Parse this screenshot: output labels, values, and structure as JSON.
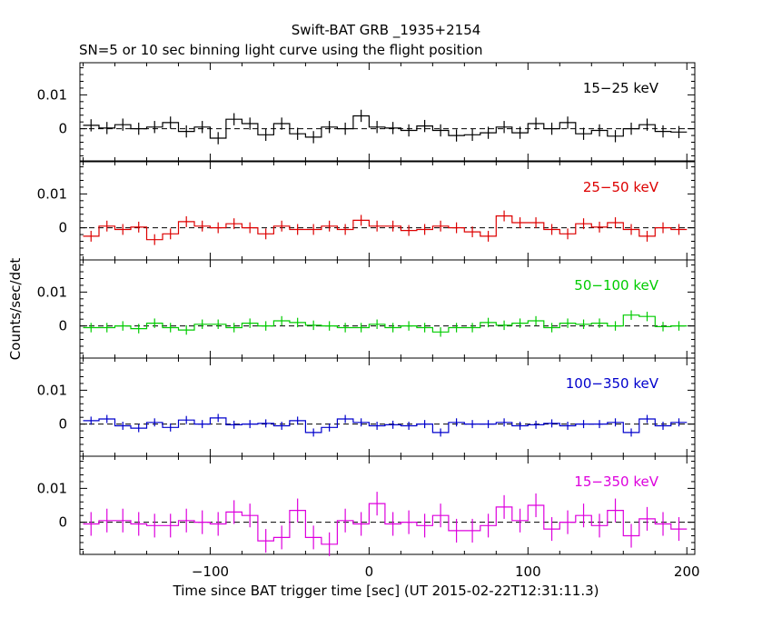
{
  "chart_data": {
    "type": "line",
    "style": "step-with-error-bars",
    "title": "Swift-BAT GRB _1935+2154",
    "subtitle": "SN=5 or 10 sec binning light curve using the flight position",
    "xlabel": "Time since BAT trigger time [sec] (UT 2015-02-22T12:31:11.3)",
    "ylabel": "Counts/sec/det",
    "xlim": [
      -182,
      205
    ],
    "ylim": [
      -0.0095,
      0.0195
    ],
    "x_ticks": [
      "−100",
      "0",
      "100",
      "200"
    ],
    "y_ticks": [
      "0",
      "0.01"
    ],
    "reference_line": "y = 0 (dashed)",
    "bin_width": 10,
    "x": [
      -175,
      -165,
      -155,
      -145,
      -135,
      -125,
      -115,
      -105,
      -95,
      -85,
      -75,
      -65,
      -55,
      -45,
      -35,
      -25,
      -15,
      -5,
      5,
      15,
      25,
      35,
      45,
      55,
      65,
      75,
      85,
      95,
      105,
      115,
      125,
      135,
      145,
      155,
      165,
      175,
      185,
      195
    ],
    "series": [
      {
        "name": "15−25 keV",
        "color": "#000000",
        "values": [
          0.001,
          0.0002,
          0.0012,
          0.0,
          0.0005,
          0.0018,
          -0.0008,
          0.0005,
          -0.0028,
          0.0028,
          0.0015,
          -0.0018,
          0.0015,
          -0.0015,
          -0.0025,
          0.0005,
          0.0,
          0.0038,
          0.0005,
          0.0002,
          -0.0005,
          0.0008,
          -0.0005,
          -0.002,
          -0.0018,
          -0.0012,
          0.0005,
          -0.0012,
          0.0015,
          0.0,
          0.0018,
          -0.0015,
          -0.0005,
          -0.0022,
          0.0,
          0.0012,
          -0.0008,
          -0.001
        ],
        "errors": [
          0.0018,
          0.0018,
          0.0018,
          0.0018,
          0.0018,
          0.0018,
          0.0018,
          0.0018,
          0.0018,
          0.0018,
          0.0018,
          0.0018,
          0.0018,
          0.0018,
          0.0018,
          0.0018,
          0.0018,
          0.0018,
          0.0018,
          0.0018,
          0.0018,
          0.0018,
          0.0018,
          0.0018,
          0.0018,
          0.0018,
          0.0018,
          0.0018,
          0.0018,
          0.0018,
          0.0018,
          0.0018,
          0.0018,
          0.0018,
          0.0018,
          0.0018,
          0.0018,
          0.0018
        ]
      },
      {
        "name": "25−50 keV",
        "color": "#dd0000",
        "values": [
          -0.0025,
          0.0005,
          -0.0005,
          0.0002,
          -0.0035,
          -0.0018,
          0.0018,
          0.0005,
          0.0,
          0.0012,
          0.0,
          -0.0018,
          0.0005,
          -0.0005,
          -0.0005,
          0.0005,
          -0.0005,
          0.0022,
          0.0005,
          0.0005,
          -0.0008,
          -0.0005,
          0.0005,
          0.0,
          -0.0012,
          -0.0025,
          0.0035,
          0.0015,
          0.0015,
          -0.0005,
          -0.0018,
          0.0012,
          0.0002,
          0.0015,
          -0.0005,
          -0.0025,
          0.0,
          -0.0005
        ],
        "errors": [
          0.0016,
          0.0016,
          0.0016,
          0.0016,
          0.0016,
          0.0016,
          0.0016,
          0.0016,
          0.0016,
          0.0016,
          0.0016,
          0.0016,
          0.0016,
          0.0016,
          0.0016,
          0.0016,
          0.0016,
          0.0016,
          0.0016,
          0.0016,
          0.0016,
          0.0016,
          0.0016,
          0.0016,
          0.0016,
          0.0016,
          0.0016,
          0.0016,
          0.0016,
          0.0016,
          0.0016,
          0.0016,
          0.0016,
          0.0016,
          0.0016,
          0.0016,
          0.0016,
          0.0016
        ]
      },
      {
        "name": "50−100 keV",
        "color": "#00cc00",
        "values": [
          -0.0005,
          -0.0005,
          0.0,
          -0.0008,
          0.0008,
          -0.0005,
          -0.0012,
          0.0005,
          0.0005,
          -0.0005,
          0.0008,
          0.0,
          0.0015,
          0.001,
          0.0002,
          0.0,
          -0.0005,
          -0.0005,
          0.0005,
          -0.0005,
          0.0,
          -0.0005,
          -0.0018,
          -0.0005,
          -0.0005,
          0.001,
          0.0002,
          0.0008,
          0.0015,
          -0.0005,
          0.0008,
          0.0005,
          0.0008,
          0.0,
          0.0032,
          0.0028,
          -0.0002,
          0.0
        ],
        "errors": [
          0.0014,
          0.0014,
          0.0014,
          0.0014,
          0.0014,
          0.0014,
          0.0014,
          0.0014,
          0.0014,
          0.0014,
          0.0014,
          0.0014,
          0.0014,
          0.0014,
          0.0014,
          0.0014,
          0.0014,
          0.0014,
          0.0014,
          0.0014,
          0.0014,
          0.0014,
          0.0014,
          0.0014,
          0.0014,
          0.0014,
          0.0014,
          0.0014,
          0.0014,
          0.0014,
          0.0014,
          0.0014,
          0.0014,
          0.0014,
          0.0014,
          0.0014,
          0.0014,
          0.0014
        ]
      },
      {
        "name": "100−350 keV",
        "color": "#0000cc",
        "values": [
          0.001,
          0.0015,
          -0.0005,
          -0.0012,
          0.0005,
          -0.001,
          0.0012,
          0.0,
          0.0018,
          -0.0002,
          0.0,
          0.0002,
          -0.0005,
          0.001,
          -0.0025,
          -0.001,
          0.0015,
          0.0005,
          -0.0005,
          -0.0002,
          -0.0005,
          0.0,
          -0.0025,
          0.0005,
          0.0,
          0.0,
          0.0005,
          -0.0005,
          -0.0002,
          0.0002,
          -0.0005,
          0.0,
          0.0,
          0.0005,
          -0.0025,
          0.0015,
          -0.0005,
          0.0005
        ],
        "errors": [
          0.0012,
          0.0012,
          0.0012,
          0.0012,
          0.0012,
          0.0012,
          0.0012,
          0.0012,
          0.0012,
          0.0012,
          0.0012,
          0.0012,
          0.0012,
          0.0012,
          0.0012,
          0.0012,
          0.0012,
          0.0012,
          0.0012,
          0.0012,
          0.0012,
          0.0012,
          0.0012,
          0.0012,
          0.0012,
          0.0012,
          0.0012,
          0.0012,
          0.0012,
          0.0012,
          0.0012,
          0.0012,
          0.0012,
          0.0012,
          0.0012,
          0.0012,
          0.0012,
          0.0012
        ]
      },
      {
        "name": "15−350 keV",
        "color": "#dd00dd",
        "values": [
          -0.0005,
          0.0005,
          0.0005,
          -0.0005,
          -0.001,
          -0.001,
          0.0005,
          0.0,
          -0.0005,
          0.003,
          0.002,
          -0.0055,
          -0.0045,
          0.0035,
          -0.0045,
          -0.0065,
          0.0005,
          -0.0005,
          0.0055,
          -0.0005,
          0.0,
          -0.001,
          0.002,
          -0.0025,
          -0.0025,
          -0.001,
          0.0045,
          0.0005,
          0.005,
          -0.002,
          0.0,
          0.002,
          -0.001,
          0.0035,
          -0.004,
          0.001,
          -0.0005,
          -0.002
        ],
        "errors": [
          0.0035,
          0.0035,
          0.0035,
          0.0035,
          0.0035,
          0.0035,
          0.0035,
          0.0035,
          0.0035,
          0.0035,
          0.0035,
          0.0035,
          0.0035,
          0.0035,
          0.0035,
          0.0035,
          0.0035,
          0.0035,
          0.0035,
          0.0035,
          0.0035,
          0.0035,
          0.0035,
          0.0035,
          0.0035,
          0.0035,
          0.0035,
          0.0035,
          0.0035,
          0.0035,
          0.0035,
          0.0035,
          0.0035,
          0.0035,
          0.0035,
          0.0035,
          0.0035,
          0.0035
        ]
      }
    ]
  }
}
